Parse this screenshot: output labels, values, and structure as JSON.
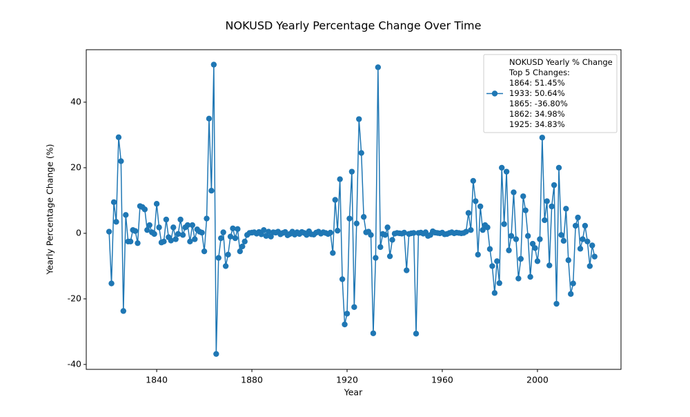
{
  "chart_data": {
    "type": "line",
    "title": "NOKUSD Yearly Percentage Change Over Time",
    "x_label": "Year",
    "y_label": "Yearly Percentage Change (%)",
    "x": [
      1820,
      1821,
      1822,
      1823,
      1824,
      1825,
      1826,
      1827,
      1828,
      1829,
      1830,
      1831,
      1832,
      1833,
      1834,
      1835,
      1836,
      1837,
      1838,
      1839,
      1840,
      1841,
      1842,
      1843,
      1844,
      1845,
      1846,
      1847,
      1848,
      1849,
      1850,
      1851,
      1852,
      1853,
      1854,
      1855,
      1856,
      1857,
      1858,
      1859,
      1860,
      1861,
      1862,
      1863,
      1864,
      1865,
      1866,
      1867,
      1868,
      1869,
      1870,
      1871,
      1872,
      1873,
      1874,
      1875,
      1876,
      1877,
      1878,
      1879,
      1880,
      1881,
      1882,
      1883,
      1884,
      1885,
      1886,
      1887,
      1888,
      1889,
      1890,
      1891,
      1892,
      1893,
      1894,
      1895,
      1896,
      1897,
      1898,
      1899,
      1900,
      1901,
      1902,
      1903,
      1904,
      1905,
      1906,
      1907,
      1908,
      1909,
      1910,
      1911,
      1912,
      1913,
      1914,
      1915,
      1916,
      1917,
      1918,
      1919,
      1920,
      1921,
      1922,
      1923,
      1924,
      1925,
      1926,
      1927,
      1928,
      1929,
      1930,
      1931,
      1932,
      1933,
      1934,
      1935,
      1936,
      1937,
      1938,
      1939,
      1940,
      1941,
      1942,
      1943,
      1944,
      1945,
      1946,
      1947,
      1948,
      1949,
      1950,
      1951,
      1952,
      1953,
      1954,
      1955,
      1956,
      1957,
      1958,
      1959,
      1960,
      1961,
      1962,
      1963,
      1964,
      1965,
      1966,
      1967,
      1968,
      1969,
      1970,
      1971,
      1972,
      1973,
      1974,
      1975,
      1976,
      1977,
      1978,
      1979,
      1980,
      1981,
      1982,
      1983,
      1984,
      1985,
      1986,
      1987,
      1988,
      1989,
      1990,
      1991,
      1992,
      1993,
      1994,
      1995,
      1996,
      1997,
      1998,
      1999,
      2000,
      2001,
      2002,
      2003,
      2004,
      2005,
      2006,
      2007,
      2008,
      2009,
      2010,
      2011,
      2012,
      2013,
      2014,
      2015,
      2016,
      2017,
      2018,
      2019,
      2020,
      2021,
      2022,
      2023,
      2024
    ],
    "series": [
      {
        "name": "NOKUSD Yearly % Change",
        "color": "#1f77b4",
        "values": [
          0.5,
          -15.3,
          9.5,
          3.5,
          29.3,
          22,
          -23.7,
          5.6,
          -2.5,
          -2.5,
          1,
          0.7,
          -3,
          8.3,
          8,
          7.3,
          1,
          2.5,
          0.3,
          -0.2,
          9,
          1.8,
          -2.8,
          -2.5,
          4.2,
          -1.2,
          -2.2,
          1.8,
          -1.8,
          -0.2,
          4.2,
          -0.5,
          1.8,
          2.5,
          -2.5,
          2.5,
          -1.8,
          1.2,
          0.5,
          0.2,
          -5.5,
          4.5,
          34.98,
          13,
          51.45,
          -36.8,
          -7.5,
          -1.5,
          0.3,
          -10,
          -6.5,
          -1,
          1.5,
          -1.5,
          1.3,
          -5.5,
          -4,
          -2.5,
          -0.5,
          0.1,
          0.2,
          0.3,
          -0.1,
          0.4,
          -0.3,
          1,
          -0.8,
          0.5,
          -1,
          0.3,
          0.2,
          0.5,
          -0.3,
          0.1,
          0.4,
          -0.6,
          -0.2,
          0.5,
          -0.4,
          0.3,
          -0.2,
          0.4,
          0.1,
          -0.5,
          0.6,
          -0.3,
          -0.4,
          0.2,
          0.5,
          -0.1,
          0.3,
          0.1,
          -0.2,
          0.2,
          -6,
          10.2,
          0.8,
          16.5,
          -14,
          -27.8,
          -24.5,
          4.5,
          18.8,
          -22.5,
          3,
          34.83,
          24.5,
          5,
          0.3,
          0.5,
          -0.5,
          -30.5,
          -7.5,
          50.64,
          -4.2,
          -0.2,
          -0.5,
          1.8,
          -7,
          -2,
          -0.1,
          0.1,
          0,
          -0.1,
          0.2,
          -11.3,
          -0.2,
          0,
          0.1,
          -30.6,
          0.1,
          0.2,
          -0.1,
          0.3,
          -0.8,
          -0.5,
          0.6,
          0.2,
          0.1,
          0,
          0.2,
          -0.3,
          -0.2,
          0.1,
          0.3,
          0,
          0.2,
          0.1,
          0,
          0.1,
          0.5,
          6.2,
          1,
          16,
          9.8,
          -6.5,
          8.2,
          1,
          2.5,
          1.8,
          -4.8,
          -10,
          -18.2,
          -8.5,
          -15.2,
          20,
          2.8,
          18.8,
          -5.2,
          -0.8,
          12.5,
          -1.8,
          -13.8,
          -7.8,
          11.3,
          7,
          -0.8,
          -13.3,
          -3.2,
          -4.5,
          -8.5,
          -1.8,
          29.2,
          4,
          9.8,
          -9.8,
          8.2,
          14.7,
          -21.5,
          20,
          -0.5,
          -2.3,
          7.5,
          -8.2,
          -18.5,
          -15.3,
          2.3,
          4.8,
          -4.7,
          -1.8,
          2.3,
          -2.5,
          -10,
          -3.7,
          -7.1
        ]
      }
    ],
    "legend_notes": [
      "Top 5 Changes:",
      "1864: 51.45%",
      "1933: 50.64%",
      "1865: -36.80%",
      "1862: 34.98%",
      "1925: 34.83%"
    ],
    "legend_position": "upper right",
    "xlim": [
      1810.4,
      2035.1
    ],
    "ylim": [
      -41.5,
      56
    ],
    "xticks": [
      1840,
      1880,
      1920,
      1960,
      2000
    ],
    "yticks": [
      -40,
      -20,
      0,
      20,
      40
    ],
    "grid": false,
    "markers": true
  }
}
